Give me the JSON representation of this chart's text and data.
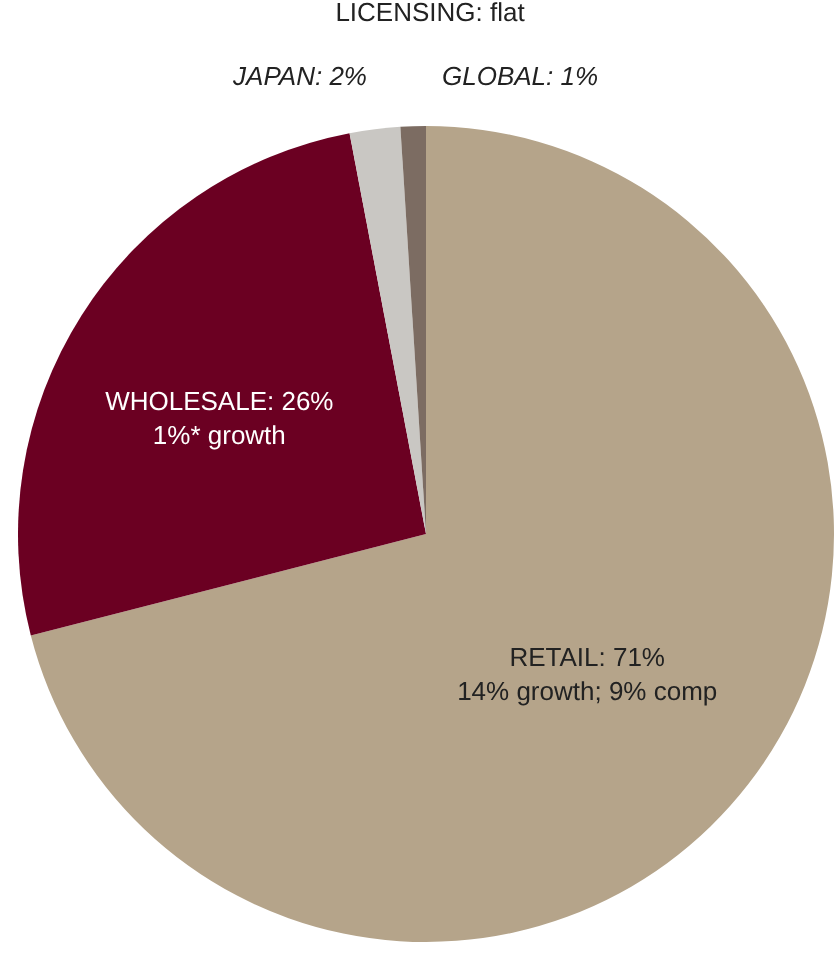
{
  "chart_data": {
    "type": "pie",
    "categories": [
      "RETAIL",
      "WHOLESALE",
      "JAPAN",
      "GLOBAL"
    ],
    "value_labels": [
      "71%",
      "26%",
      "2%",
      "1%"
    ],
    "values": [
      71,
      26,
      2,
      1
    ],
    "colors": [
      "#b5a48a",
      "#6b0022",
      "#c9c7c3",
      "#7c6c62"
    ],
    "annotations": [
      {
        "text": "14% growth; 9% comp",
        "x": "RETAIL"
      },
      {
        "text": "1%* growth",
        "x": "WHOLESALE"
      },
      "LICENSING: flat"
    ]
  }
}
